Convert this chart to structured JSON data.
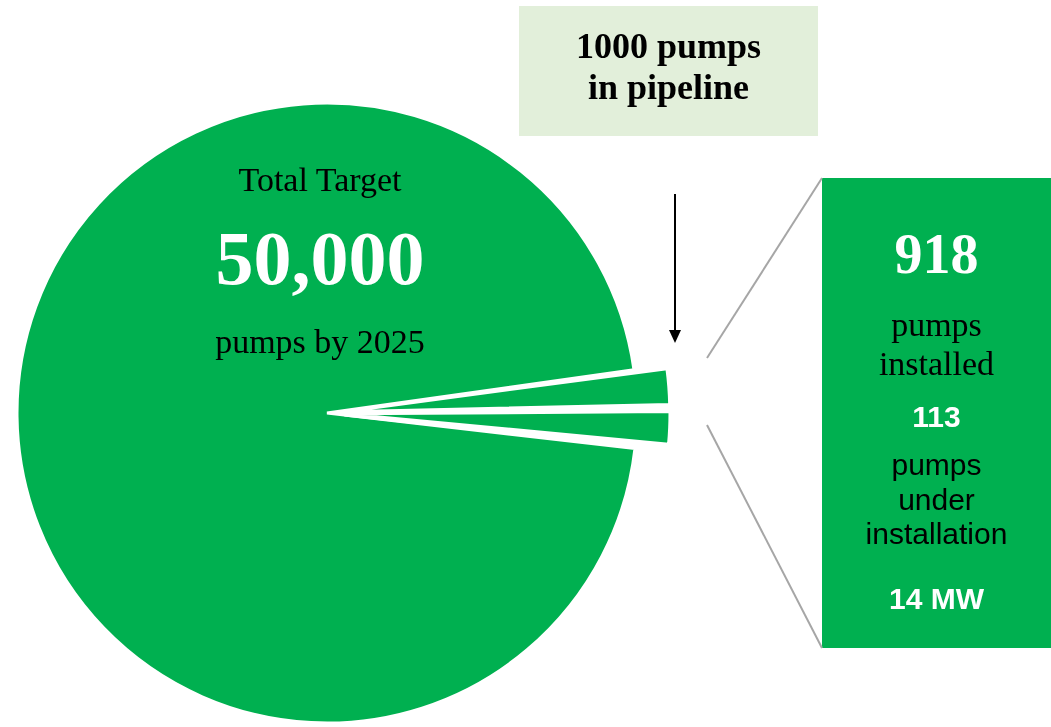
{
  "chart_data": {
    "type": "pie",
    "categories": [
      null,
      null,
      null,
      null
    ],
    "values": [
      95.938,
      2,
      1.836,
      0.226
    ],
    "colors": [
      "#00b050",
      "#00b050",
      "#00b050",
      "#00b050"
    ],
    "legend": false,
    "annotations": [
      "Total Target",
      "50,000",
      "pumps by 2025",
      "1000 pumps in pipeline",
      "918",
      "pumps installed",
      "113",
      "pumps under installation",
      "14 MW"
    ]
  }
}
